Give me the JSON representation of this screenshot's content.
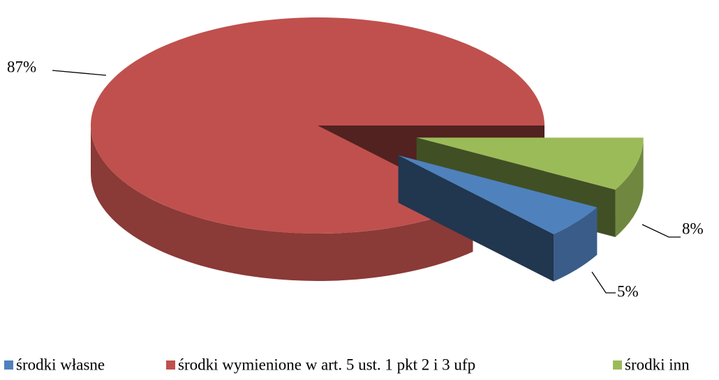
{
  "chart_data": {
    "type": "pie",
    "categories": [
      "środki własne",
      "środki wymienione w art. 5 ust. 1 pkt 2 i 3 ufp",
      "środki inn"
    ],
    "values": [
      5,
      87,
      8
    ],
    "value_labels": [
      "5%",
      "87%",
      "8%"
    ],
    "colors": [
      "#4f81bd",
      "#c0504d",
      "#9bbb59"
    ],
    "legend": "bottom"
  }
}
